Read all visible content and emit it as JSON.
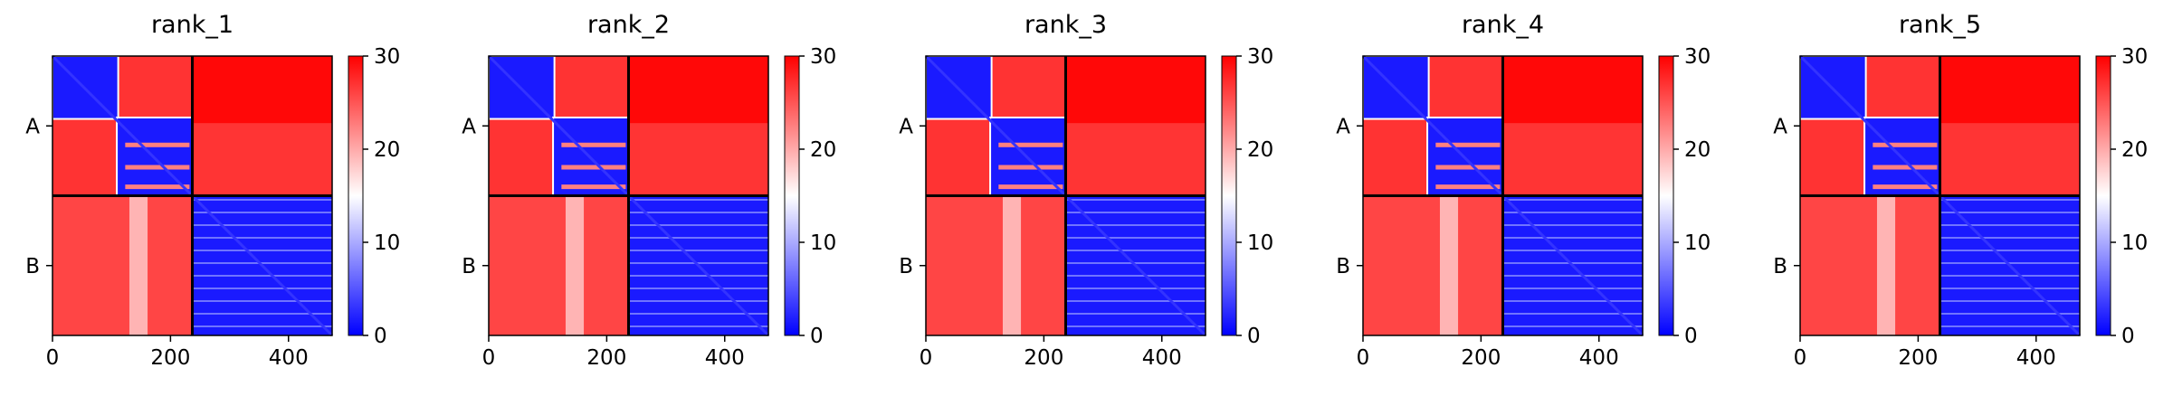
{
  "chart_data": [
    {
      "type": "heatmap",
      "title": "rank_1",
      "xticks": [
        "0",
        "200",
        "400"
      ],
      "xtick_values": [
        0,
        200,
        400
      ],
      "yticks": [
        "A",
        "B"
      ],
      "xlim": [
        0,
        474
      ],
      "chain_split": 237,
      "colorbar": {
        "min": 0,
        "max": 30,
        "ticks": [
          "0",
          "10",
          "20",
          "30"
        ],
        "colors": [
          "#0000ff",
          "#ffffff",
          "#ff0000"
        ]
      }
    },
    {
      "type": "heatmap",
      "title": "rank_2",
      "xticks": [
        "0",
        "200",
        "400"
      ],
      "xtick_values": [
        0,
        200,
        400
      ],
      "yticks": [
        "A",
        "B"
      ],
      "xlim": [
        0,
        474
      ],
      "chain_split": 237,
      "colorbar": {
        "min": 0,
        "max": 30,
        "ticks": [
          "0",
          "10",
          "20",
          "30"
        ],
        "colors": [
          "#0000ff",
          "#ffffff",
          "#ff0000"
        ]
      }
    },
    {
      "type": "heatmap",
      "title": "rank_3",
      "xticks": [
        "0",
        "200",
        "400"
      ],
      "xtick_values": [
        0,
        200,
        400
      ],
      "yticks": [
        "A",
        "B"
      ],
      "xlim": [
        0,
        474
      ],
      "chain_split": 237,
      "colorbar": {
        "min": 0,
        "max": 30,
        "ticks": [
          "0",
          "10",
          "20",
          "30"
        ],
        "colors": [
          "#0000ff",
          "#ffffff",
          "#ff0000"
        ]
      }
    },
    {
      "type": "heatmap",
      "title": "rank_4",
      "xticks": [
        "0",
        "200",
        "400"
      ],
      "xtick_values": [
        0,
        200,
        400
      ],
      "yticks": [
        "A",
        "B"
      ],
      "xlim": [
        0,
        474
      ],
      "chain_split": 237,
      "colorbar": {
        "min": 0,
        "max": 30,
        "ticks": [
          "0",
          "10",
          "20",
          "30"
        ],
        "colors": [
          "#0000ff",
          "#ffffff",
          "#ff0000"
        ]
      }
    },
    {
      "type": "heatmap",
      "title": "rank_5",
      "xticks": [
        "0",
        "200",
        "400"
      ],
      "xtick_values": [
        0,
        200,
        400
      ],
      "yticks": [
        "A",
        "B"
      ],
      "xlim": [
        0,
        474
      ],
      "chain_split": 237,
      "colorbar": {
        "min": 0,
        "max": 30,
        "ticks": [
          "0",
          "10",
          "20",
          "30"
        ],
        "colors": [
          "#0000ff",
          "#ffffff",
          "#ff0000"
        ]
      }
    }
  ]
}
